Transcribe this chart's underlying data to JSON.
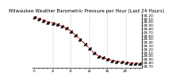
{
  "title": "Milwaukee Weather Barometric Pressure per Hour (Last 24 Hours)",
  "hours": [
    0,
    1,
    2,
    3,
    4,
    5,
    6,
    7,
    8,
    9,
    10,
    11,
    12,
    13,
    14,
    15,
    16,
    17,
    18,
    19,
    20,
    21,
    22,
    23
  ],
  "pressure": [
    30.15,
    30.1,
    30.05,
    30.0,
    29.97,
    29.93,
    29.88,
    29.82,
    29.73,
    29.62,
    29.5,
    29.37,
    29.23,
    29.1,
    29.0,
    28.95,
    28.9,
    28.87,
    28.84,
    28.82,
    28.8,
    28.79,
    28.78,
    28.77
  ],
  "line_color": "#cc0000",
  "marker_color": "#000000",
  "bg_color": "#ffffff",
  "grid_color": "#999999",
  "ylim_min": 28.65,
  "ylim_max": 30.25,
  "ytick_values": [
    28.7,
    28.8,
    28.9,
    29.0,
    29.1,
    29.2,
    29.3,
    29.4,
    29.5,
    29.6,
    29.7,
    29.8,
    29.9,
    30.0,
    30.1,
    30.2
  ],
  "title_fontsize": 3.8,
  "tick_fontsize": 3.0,
  "line_width": 0.7,
  "marker_size": 2.0,
  "marker_ew": 0.5
}
